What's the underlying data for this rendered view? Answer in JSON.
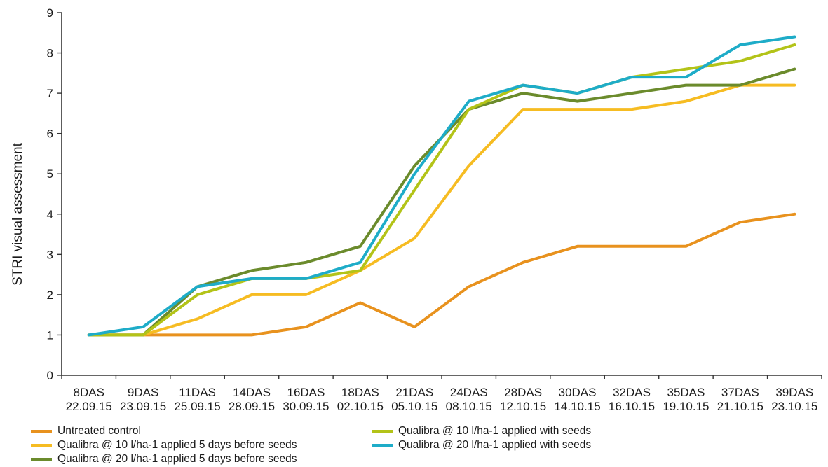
{
  "chart_data": {
    "type": "line",
    "title": "",
    "xlabel": "",
    "ylabel": "STRI visual assessment",
    "ylim": [
      0,
      9
    ],
    "yticks": [
      "0",
      "1",
      "2",
      "3",
      "4",
      "5",
      "6",
      "7",
      "8",
      "9"
    ],
    "categories": [
      {
        "top": "8DAS",
        "bottom": "22.09.15"
      },
      {
        "top": "9DAS",
        "bottom": "23.09.15"
      },
      {
        "top": "11DAS",
        "bottom": "25.09.15"
      },
      {
        "top": "14DAS",
        "bottom": "28.09.15"
      },
      {
        "top": "16DAS",
        "bottom": "30.09.15"
      },
      {
        "top": "18DAS",
        "bottom": "02.10.15"
      },
      {
        "top": "21DAS",
        "bottom": "05.10.15"
      },
      {
        "top": "24DAS",
        "bottom": "08.10.15"
      },
      {
        "top": "28DAS",
        "bottom": "12.10.15"
      },
      {
        "top": "30DAS",
        "bottom": "14.10.15"
      },
      {
        "top": "32DAS",
        "bottom": "16.10.15"
      },
      {
        "top": "35DAS",
        "bottom": "19.10.15"
      },
      {
        "top": "37DAS",
        "bottom": "21.10.15"
      },
      {
        "top": "39DAS",
        "bottom": "23.10.15"
      }
    ],
    "series": [
      {
        "name": "Untreated control",
        "color": "#e8921e",
        "values": [
          1,
          1,
          1,
          1,
          1.2,
          1.8,
          1.2,
          2.2,
          2.8,
          3.2,
          3.2,
          3.2,
          3.8,
          4.0
        ]
      },
      {
        "name": "Qualibra @ 10 l/ha-1 applied 5 days before seeds",
        "color": "#f6bc22",
        "values": [
          1,
          1,
          1.4,
          2.0,
          2.0,
          2.6,
          3.4,
          5.2,
          6.6,
          6.6,
          6.6,
          6.8,
          7.2,
          7.2
        ]
      },
      {
        "name": "Qualibra @ 20 l/ha-1 applied 5 days before seeds",
        "color": "#6b8b2c",
        "values": [
          1,
          1,
          2.2,
          2.6,
          2.8,
          3.2,
          5.2,
          6.6,
          7.0,
          6.8,
          7.0,
          7.2,
          7.2,
          7.6
        ]
      },
      {
        "name": "Qualibra @ 10 l/ha-1 applied with seeds",
        "color": "#b3c318",
        "values": [
          1,
          1,
          2.0,
          2.4,
          2.4,
          2.6,
          4.6,
          6.6,
          7.2,
          7.0,
          7.4,
          7.6,
          7.8,
          8.2
        ]
      },
      {
        "name": "Qualibra @ 20 l/ha-1 applied with seeds",
        "color": "#1eacc8",
        "values": [
          1,
          1.2,
          2.2,
          2.4,
          2.4,
          2.8,
          5.0,
          6.8,
          7.2,
          7.0,
          7.4,
          7.4,
          8.2,
          8.4
        ]
      }
    ],
    "legend_position": "bottom",
    "grid": false
  }
}
